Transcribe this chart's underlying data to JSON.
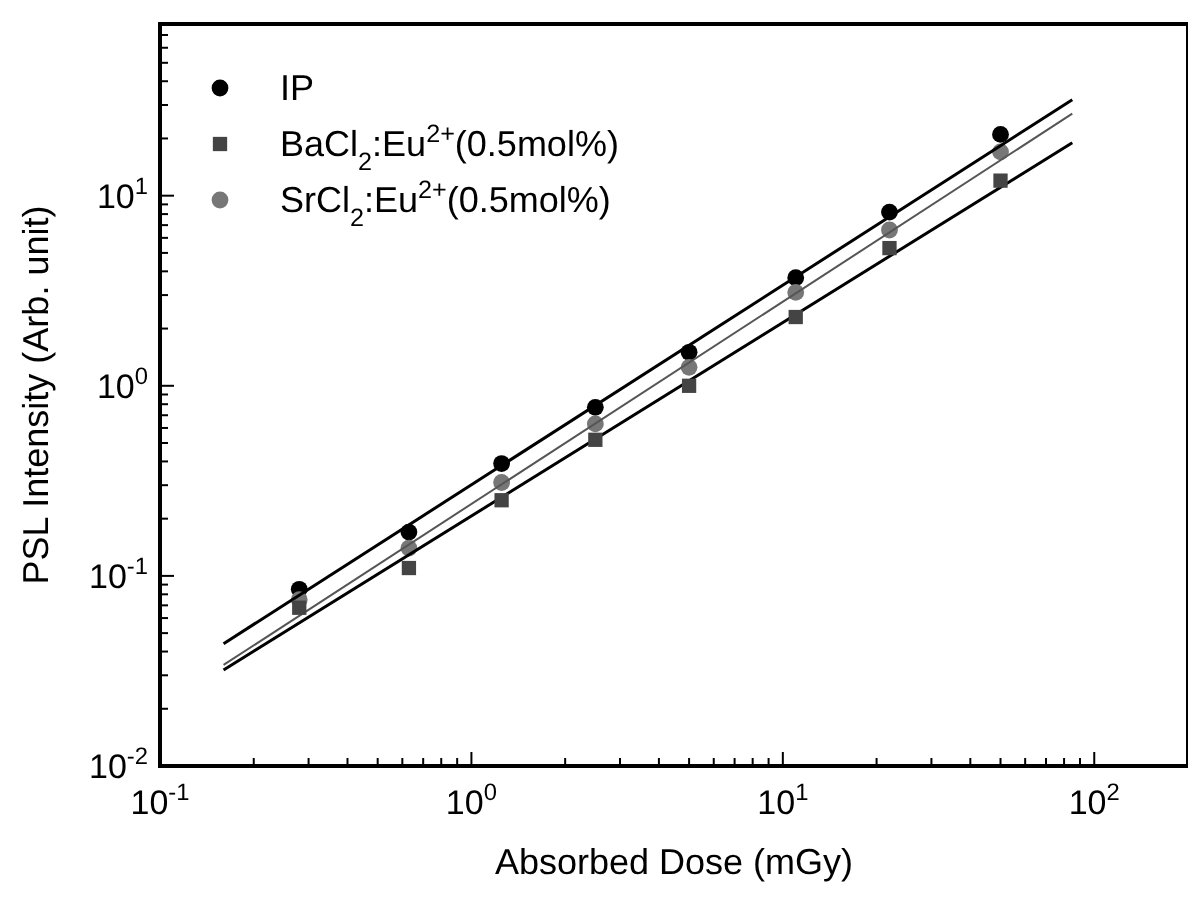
{
  "chart_data": {
    "type": "scatter",
    "xlabel": "Absorbed Dose (mGy)",
    "ylabel": "PSL Intensity (Arb. unit)",
    "log": "xy",
    "grid": false,
    "legend": "top left",
    "xlim": [
      0.1,
      200
    ],
    "ylim": [
      0.01,
      80
    ],
    "xticks": [
      {
        "value": 0.1,
        "label": "10$^{-1}$"
      },
      {
        "value": 0.2,
        "label": null
      },
      {
        "value": 0.3,
        "label": null
      },
      {
        "value": 0.4,
        "label": null
      },
      {
        "value": 0.5,
        "label": null
      },
      {
        "value": 0.6,
        "label": null
      },
      {
        "value": 0.7,
        "label": null
      },
      {
        "value": 0.8,
        "label": null
      },
      {
        "value": 0.9,
        "label": null
      },
      {
        "value": 1,
        "label": "10$^{0}$"
      },
      {
        "value": 2,
        "label": null
      },
      {
        "value": 3,
        "label": null
      },
      {
        "value": 4,
        "label": null
      },
      {
        "value": 5,
        "label": null
      },
      {
        "value": 6,
        "label": null
      },
      {
        "value": 7,
        "label": null
      },
      {
        "value": 8,
        "label": null
      },
      {
        "value": 9,
        "label": null
      },
      {
        "value": 10,
        "label": "10$^{1}$"
      },
      {
        "value": 20,
        "label": null
      },
      {
        "value": 30,
        "label": null
      },
      {
        "value": 40,
        "label": null
      },
      {
        "value": 50,
        "label": null
      },
      {
        "value": 60,
        "label": null
      },
      {
        "value": 70,
        "label": null
      },
      {
        "value": 80,
        "label": null
      },
      {
        "value": 90,
        "label": null
      },
      {
        "value": 100,
        "label": "10$^{2}$"
      }
    ],
    "yticks": [
      {
        "value": 0.01,
        "label": "10$^{-2}$"
      },
      {
        "value": 0.02,
        "label": null
      },
      {
        "value": 0.03,
        "label": null
      },
      {
        "value": 0.04,
        "label": null
      },
      {
        "value": 0.05,
        "label": null
      },
      {
        "value": 0.06,
        "label": null
      },
      {
        "value": 0.07,
        "label": null
      },
      {
        "value": 0.08,
        "label": null
      },
      {
        "value": 0.09,
        "label": null
      },
      {
        "value": 0.1,
        "label": "10$^{-1}$"
      },
      {
        "value": 0.2,
        "label": null
      },
      {
        "value": 0.3,
        "label": null
      },
      {
        "value": 0.4,
        "label": null
      },
      {
        "value": 0.5,
        "label": null
      },
      {
        "value": 0.6,
        "label": null
      },
      {
        "value": 0.7,
        "label": null
      },
      {
        "value": 0.8,
        "label": null
      },
      {
        "value": 0.9,
        "label": null
      },
      {
        "value": 1,
        "label": "10$^{0}$"
      },
      {
        "value": 2,
        "label": null
      },
      {
        "value": 3,
        "label": null
      },
      {
        "value": 4,
        "label": null
      },
      {
        "value": 5,
        "label": null
      },
      {
        "value": 6,
        "label": null
      },
      {
        "value": 7,
        "label": null
      },
      {
        "value": 8,
        "label": null
      },
      {
        "value": 9,
        "label": null
      },
      {
        "value": 10,
        "label": "10$^{1}$"
      },
      {
        "value": 20,
        "label": null
      },
      {
        "value": 30,
        "label": null
      },
      {
        "value": 40,
        "label": null
      },
      {
        "value": 50,
        "label": null
      },
      {
        "value": 60,
        "label": null
      },
      {
        "value": 70,
        "label": null
      }
    ],
    "series": [
      {
        "name": "IP",
        "marker": "circle",
        "color": "#000000",
        "x": [
          0.28,
          0.63,
          1.25,
          2.5,
          5,
          11,
          22,
          50
        ],
        "values": [
          0.085,
          0.17,
          0.39,
          0.77,
          1.5,
          3.7,
          8.2,
          21
        ]
      },
      {
        "name": "BaCl$_{2}$:Eu$^{2+}$(0.5mol%)",
        "marker": "square",
        "color": "#444444",
        "x": [
          0.28,
          0.63,
          1.25,
          2.5,
          5,
          11,
          22,
          50
        ],
        "values": [
          0.068,
          0.11,
          0.25,
          0.52,
          1.0,
          2.3,
          5.3,
          12
        ]
      },
      {
        "name": "SrCl$_{2}$:Eu$^{2+}$(0.5mol%)",
        "marker": "circle",
        "color": "#777777",
        "x": [
          0.28,
          0.63,
          1.25,
          2.5,
          5,
          11,
          22,
          50
        ],
        "values": [
          0.075,
          0.14,
          0.31,
          0.63,
          1.25,
          3.1,
          6.6,
          17
        ]
      },
      {
        "type": "line",
        "color": "#000000",
        "x": [
          0.16,
          85
        ],
        "values": [
          0.044,
          32
        ]
      },
      {
        "type": "line",
        "color": "#555555",
        "x": [
          0.16,
          85
        ],
        "values": [
          0.034,
          27
        ]
      },
      {
        "type": "line",
        "color": "#000000",
        "x": [
          0.16,
          85
        ],
        "values": [
          0.032,
          19
        ]
      }
    ]
  }
}
